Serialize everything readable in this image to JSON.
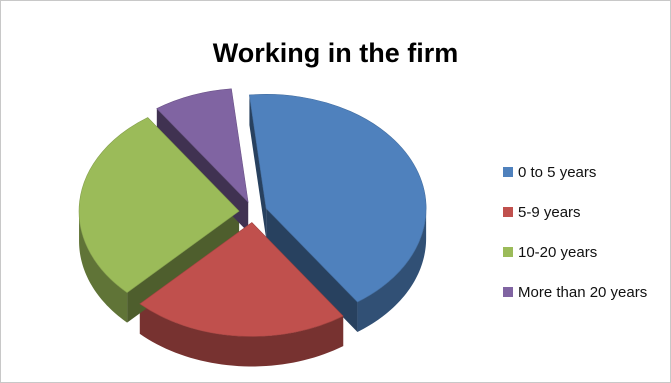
{
  "chart_data": {
    "type": "pie",
    "style": "3d-exploded",
    "title": "Working in the firm",
    "legend_position": "right",
    "slices": [
      {
        "label": "0 to 5 years",
        "value": 42,
        "color": "#4F81BD"
      },
      {
        "label": "5-9 years",
        "value": 22,
        "color": "#C0504D"
      },
      {
        "label": "10-20 years",
        "value": 28,
        "color": "#9BBB59"
      },
      {
        "label": "More than 20 years",
        "value": 8,
        "color": "#8064A2"
      }
    ]
  }
}
